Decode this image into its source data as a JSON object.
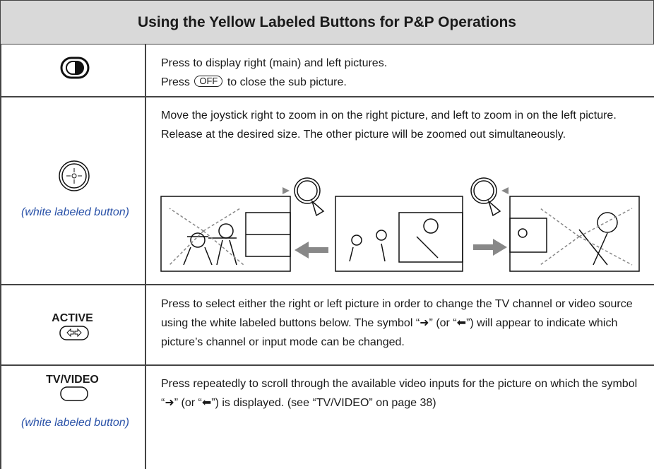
{
  "header": {
    "title": "Using the Yellow Labeled Buttons for P&P Operations"
  },
  "rows": [
    {
      "description": [
        "Press to display right (main) and left pictures.",
        {
          "before": "Press",
          "button": "OFF",
          "after": "to close the sub picture."
        }
      ]
    },
    {
      "note": "(white labeled button)",
      "description": "Move the joystick right to zoom in on the right picture, and left to zoom in on the left picture. Release at the desired size. The other picture will be zoomed out simultaneously."
    },
    {
      "label": "ACTIVE",
      "description": "Press to select either the right or left picture in order to change the TV channel or video source using the white labeled buttons below. The symbol “➜” (or “⬅”) will appear to indicate which picture’s channel or input mode can be changed."
    },
    {
      "label": "TV/VIDEO",
      "note": "(white labeled button)",
      "description": "Press repeatedly to scroll through the available video inputs for the picture on which the symbol “➜” (or “⬅”) is displayed. (see “TV/VIDEO” on page 38)"
    }
  ]
}
